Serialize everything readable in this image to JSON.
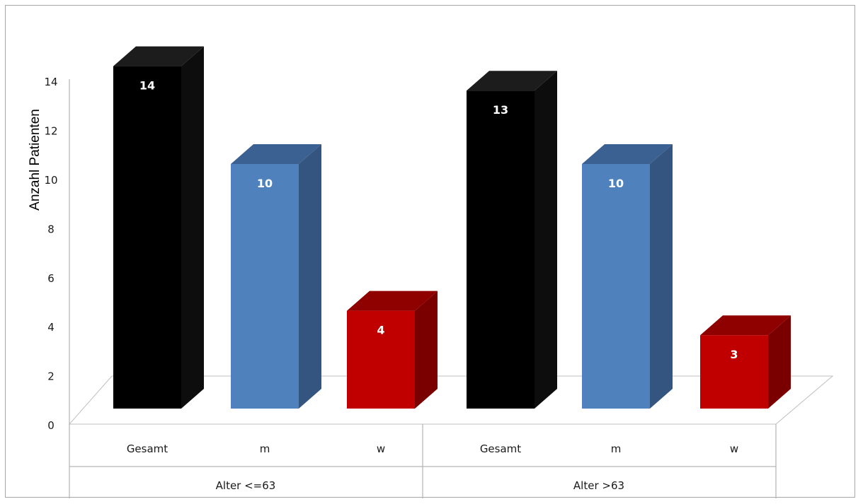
{
  "chart_data": {
    "type": "bar",
    "ylabel": "Anzahl Patienten",
    "xlabel": "",
    "title": "",
    "ylim": [
      0,
      14
    ],
    "yticks": [
      0,
      2,
      4,
      6,
      8,
      10,
      12,
      14
    ],
    "categories": [
      "Gesamt",
      "m",
      "w",
      "Gesamt",
      "m",
      "w"
    ],
    "groups": [
      {
        "label": "Alter <=63",
        "categories": [
          "Gesamt",
          "m",
          "w"
        ],
        "values": [
          14,
          10,
          4
        ]
      },
      {
        "label": "Alter >63",
        "categories": [
          "Gesamt",
          "m",
          "w"
        ],
        "values": [
          13,
          10,
          3
        ]
      }
    ],
    "values": [
      14,
      10,
      4,
      13,
      10,
      3
    ],
    "colors": {
      "Gesamt": {
        "front": "#000000",
        "side": "#0d0d0d",
        "top": "#1c1c1c"
      },
      "m": {
        "front": "#4f81bd",
        "side": "#34557f",
        "top": "#3b6193"
      },
      "w": {
        "front": "#c00000",
        "side": "#7a0000",
        "top": "#8f0000"
      }
    },
    "grid": false,
    "legend": "none",
    "style": "3d-column"
  }
}
